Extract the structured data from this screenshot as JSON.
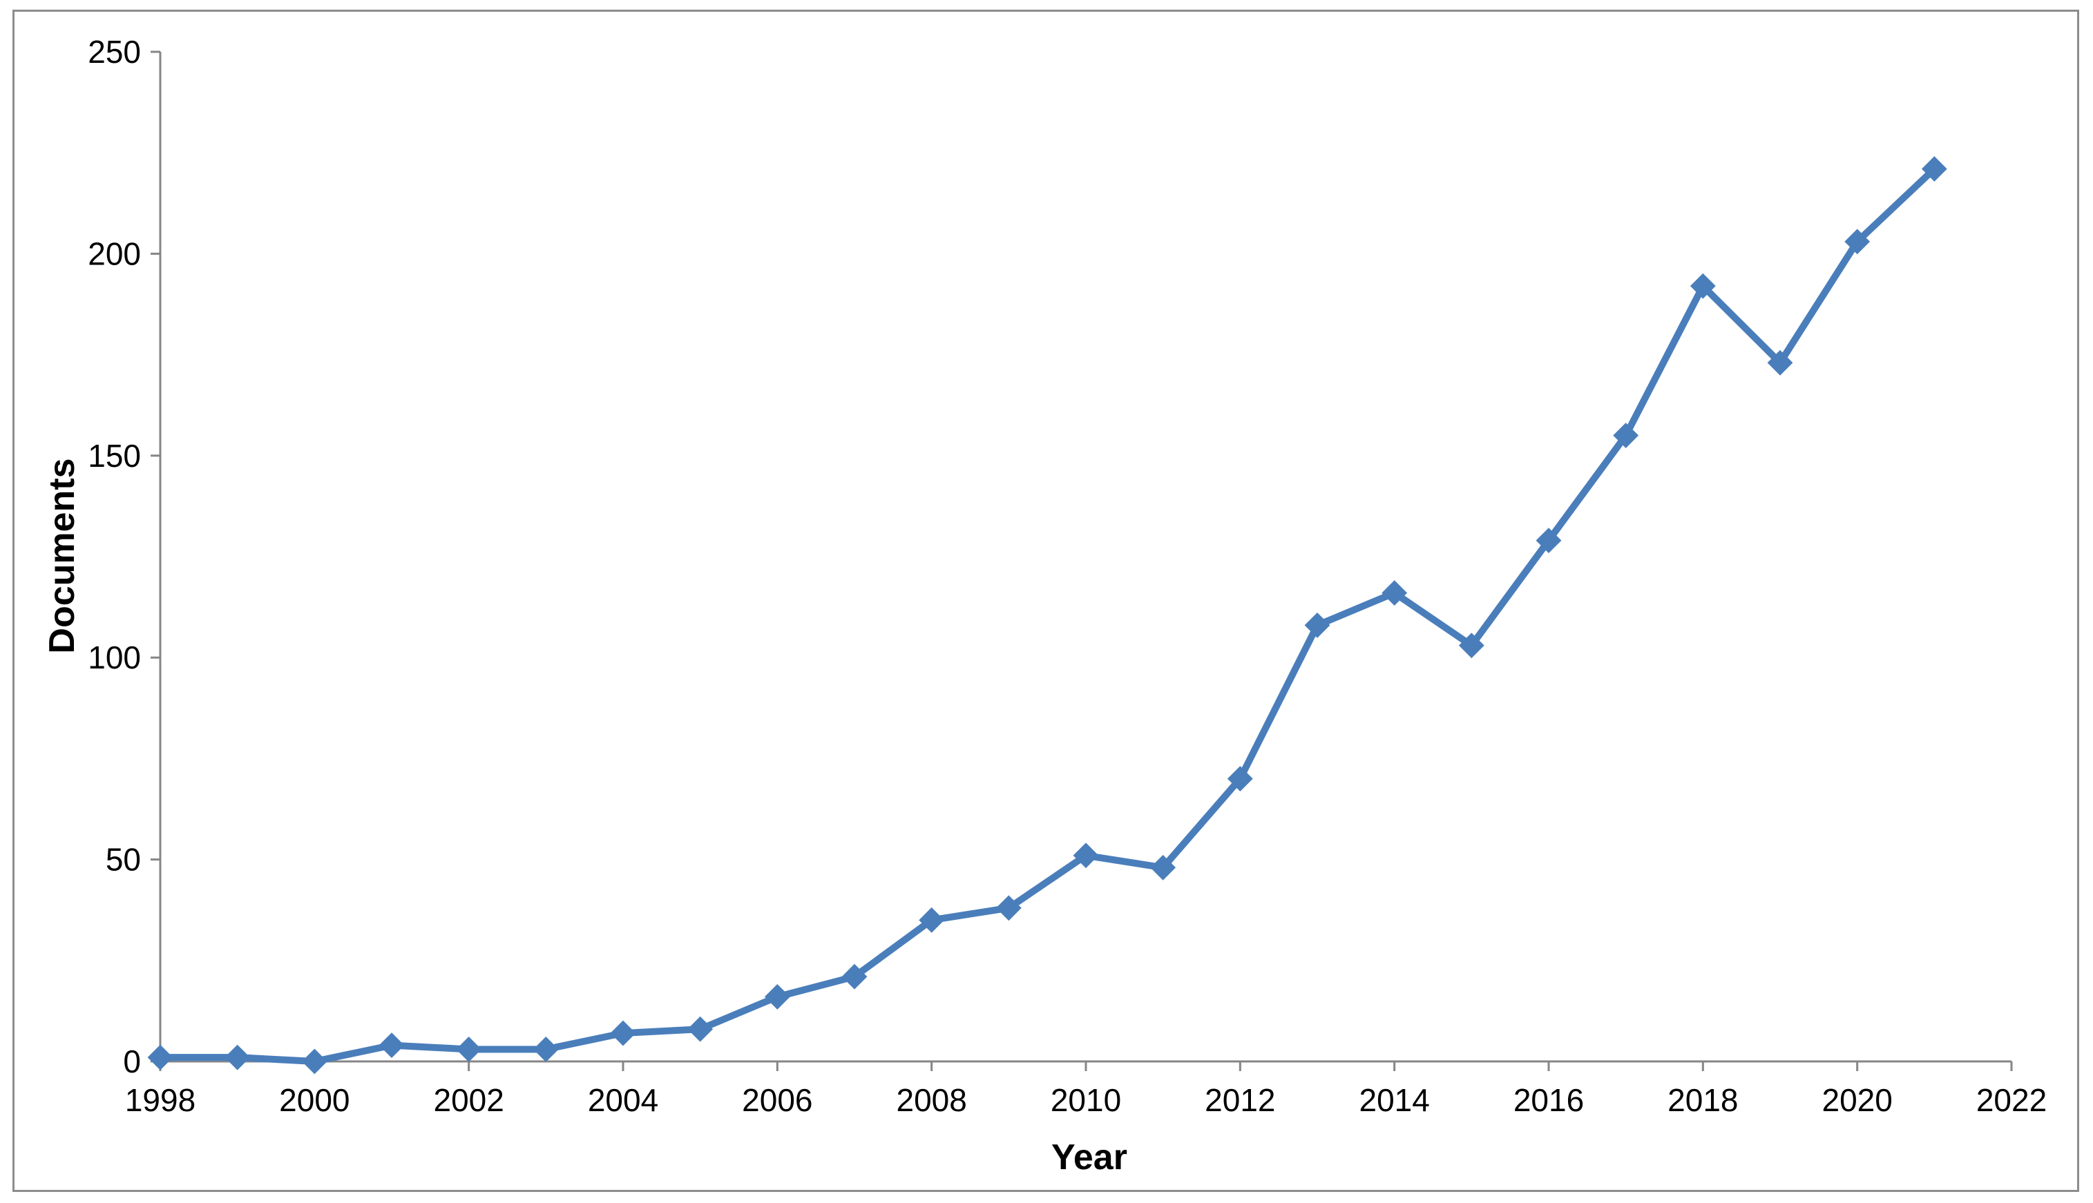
{
  "chart_data": {
    "type": "line",
    "title": "",
    "xlabel": "Year",
    "ylabel": "Documents",
    "xlim": [
      1998,
      2022
    ],
    "ylim": [
      0,
      250
    ],
    "x_ticks": [
      "1998",
      "2000",
      "2002",
      "2004",
      "2006",
      "2008",
      "2010",
      "2012",
      "2014",
      "2016",
      "2018",
      "2020",
      "2022"
    ],
    "y_ticks": [
      "0",
      "50",
      "100",
      "150",
      "200",
      "250"
    ],
    "grid": false,
    "legend": "none",
    "series": [
      {
        "color": "#4a7ebb",
        "marker": "diamond",
        "x": [
          1998,
          1999,
          2000,
          2001,
          2002,
          2003,
          2004,
          2005,
          2006,
          2007,
          2008,
          2009,
          2010,
          2011,
          2012,
          2013,
          2014,
          2015,
          2016,
          2017,
          2018,
          2019,
          2020,
          2021
        ],
        "values": [
          1,
          1,
          0,
          4,
          3,
          3,
          7,
          8,
          16,
          21,
          35,
          38,
          51,
          48,
          70,
          108,
          116,
          103,
          129,
          155,
          192,
          173,
          203,
          221
        ]
      }
    ]
  }
}
